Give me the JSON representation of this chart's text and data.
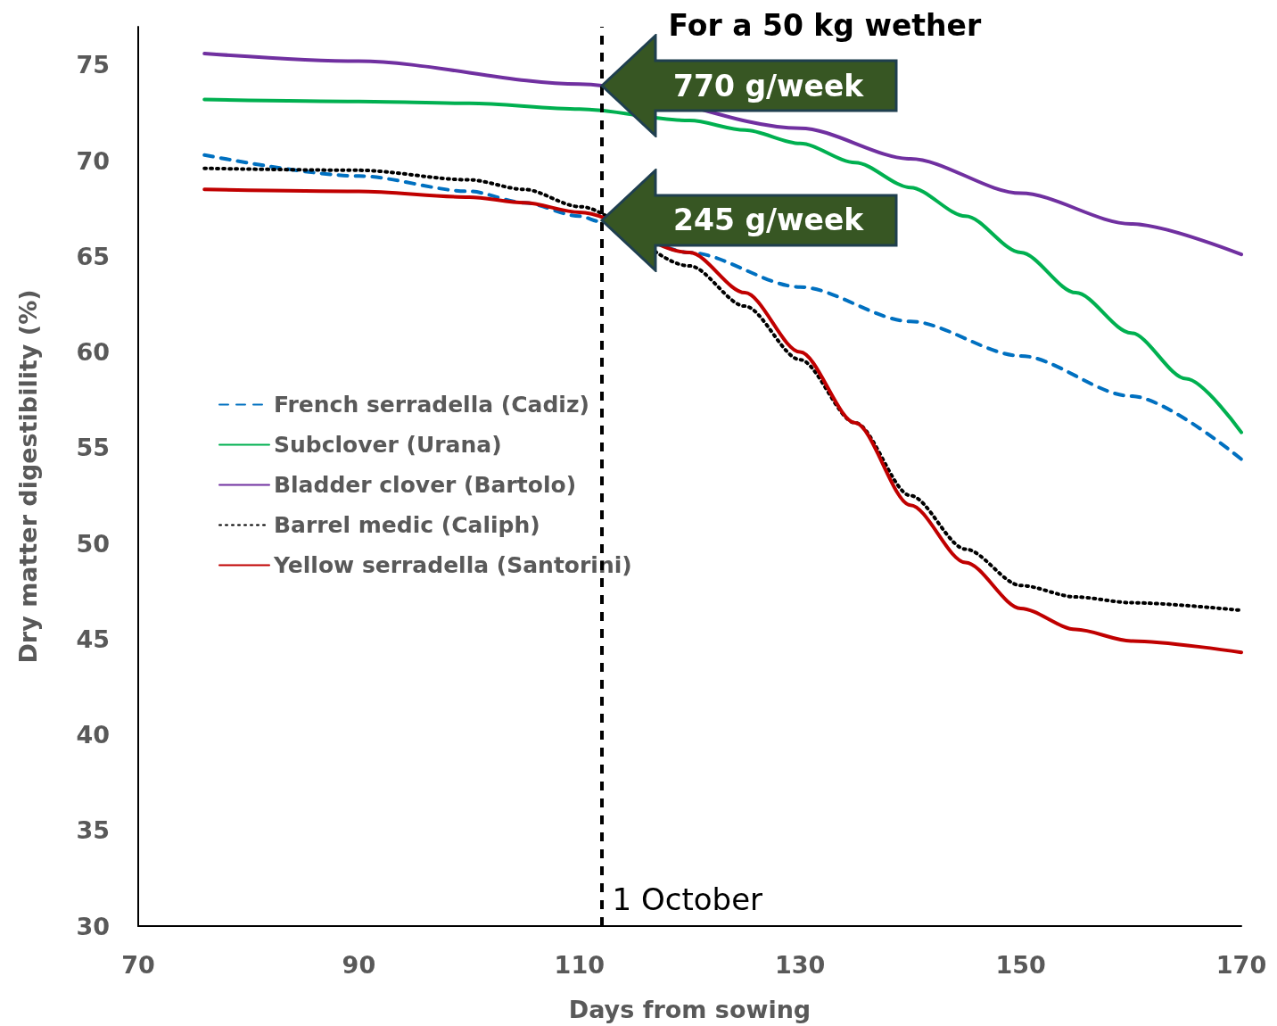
{
  "chart_data": {
    "type": "line",
    "xlabel": "Days from sowing",
    "ylabel": "Dry matter digestibility (%)",
    "xlim": [
      70,
      170
    ],
    "xticks": [
      70,
      90,
      110,
      130,
      150,
      170
    ],
    "ylim": [
      30,
      77
    ],
    "yticks": [
      30,
      35,
      40,
      45,
      50,
      55,
      60,
      65,
      70,
      75
    ],
    "grid": false,
    "legend": "left",
    "marker": "none",
    "series": [
      {
        "name": "French serradella (Cadiz)",
        "color": "#0070c0",
        "line_style": "dashed",
        "x": [
          76,
          90,
          100,
          105,
          110,
          112,
          120,
          130,
          140,
          150,
          160,
          170
        ],
        "values": [
          70.3,
          69.2,
          68.4,
          67.8,
          67.1,
          66.8,
          65.2,
          63.4,
          61.6,
          59.8,
          57.7,
          54.4
        ]
      },
      {
        "name": "Subclover (Urana)",
        "color": "#00b050",
        "line_style": "solid",
        "x": [
          76,
          90,
          100,
          110,
          115,
          120,
          125,
          130,
          135,
          140,
          145,
          150,
          155,
          160,
          165,
          170
        ],
        "values": [
          73.2,
          73.1,
          73.0,
          72.7,
          null,
          72.1,
          71.6,
          70.9,
          69.9,
          68.6,
          67.1,
          65.2,
          63.1,
          61.0,
          58.6,
          55.8
        ]
      },
      {
        "name": "Bladder clover (Bartolo)",
        "color": "#7030a0",
        "line_style": "solid",
        "x": [
          76,
          90,
          110,
          120,
          130,
          140,
          150,
          160,
          170
        ],
        "values": [
          75.6,
          75.2,
          74.0,
          null,
          71.7,
          70.1,
          68.3,
          66.7,
          65.1
        ]
      },
      {
        "name": "Barrel medic (Caliph)",
        "color": "#000000",
        "line_style": "dotted",
        "x": [
          76,
          90,
          100,
          105,
          110,
          115,
          120,
          125,
          130,
          135,
          140,
          145,
          150,
          155,
          160,
          170
        ],
        "values": [
          69.6,
          69.5,
          69.0,
          68.5,
          67.6,
          null,
          64.5,
          62.4,
          59.6,
          56.3,
          52.5,
          49.7,
          47.8,
          47.2,
          46.9,
          46.5
        ]
      },
      {
        "name": "Yellow serradella (Santorini)",
        "color": "#c00000",
        "line_style": "solid",
        "x": [
          76,
          90,
          100,
          105,
          110,
          115,
          120,
          125,
          130,
          135,
          140,
          145,
          150,
          155,
          160,
          170
        ],
        "values": [
          68.5,
          68.4,
          68.1,
          67.8,
          67.3,
          null,
          65.2,
          63.1,
          60.0,
          56.3,
          52.0,
          49.0,
          46.6,
          45.5,
          44.9,
          44.3
        ]
      }
    ],
    "ref_lines": [
      {
        "axis": "x",
        "value": 112,
        "label": "1 October",
        "color": "#000000",
        "line_style": "dashed"
      }
    ],
    "annotations": [
      "For a 50 kg wether",
      {
        "text": "770 g/week",
        "x": 112,
        "y": 73.9
      },
      {
        "text": "245 g/week",
        "x": 112,
        "y": 66.9
      }
    ]
  }
}
